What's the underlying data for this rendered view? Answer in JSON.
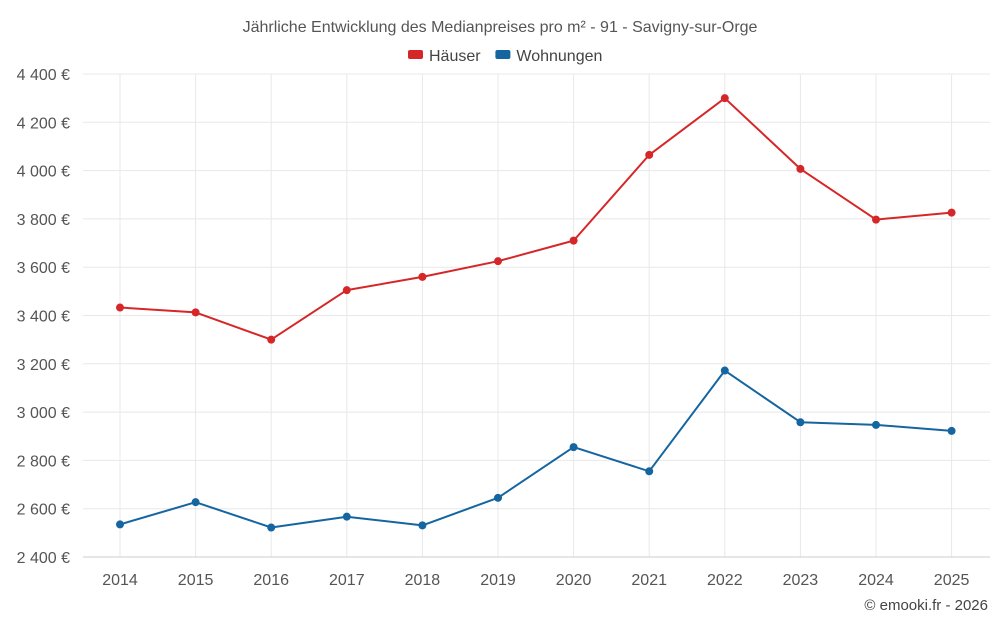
{
  "chart_data": {
    "type": "line",
    "title": "Jährliche Entwicklung des Medianpreises pro m² - 91 - Savigny-sur-Orge",
    "categories": [
      "2014",
      "2015",
      "2016",
      "2017",
      "2018",
      "2019",
      "2020",
      "2021",
      "2022",
      "2023",
      "2024",
      "2025"
    ],
    "series": [
      {
        "name": "Häuser",
        "color": "#d62728",
        "values": [
          3433,
          3413,
          3300,
          3505,
          3560,
          3625,
          3710,
          4065,
          4300,
          4007,
          3797,
          3826
        ]
      },
      {
        "name": "Wohnungen",
        "color": "#1565a0",
        "values": [
          2535,
          2627,
          2522,
          2567,
          2531,
          2645,
          2855,
          2755,
          3172,
          2958,
          2947,
          2922
        ]
      }
    ],
    "ylim": [
      2400,
      4400
    ],
    "yticks": [
      2400,
      2600,
      2800,
      3000,
      3200,
      3400,
      3600,
      3800,
      4000,
      4200,
      4400
    ],
    "ytick_labels": [
      "2 400 €",
      "2 600 €",
      "2 800 €",
      "3 000 €",
      "3 200 €",
      "3 400 €",
      "3 600 €",
      "3 800 €",
      "4 000 €",
      "4 200 €",
      "4 400 €"
    ],
    "legend_position": "top-center",
    "grid": true,
    "xlabel": "",
    "ylabel": ""
  },
  "credit": "© emooki.fr - 2026"
}
